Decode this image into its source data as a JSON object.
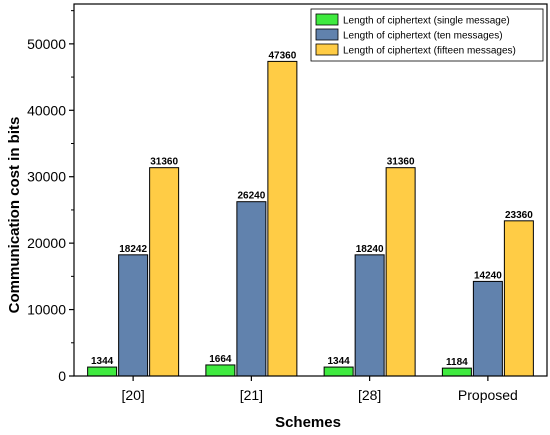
{
  "chart_data": {
    "type": "bar",
    "title": "",
    "xlabel": "Schemes",
    "ylabel": "Communication cost in bits",
    "categories": [
      "[20]",
      "[21]",
      "[28]",
      "Proposed"
    ],
    "series": [
      {
        "name": "Length of ciphertext (single message)",
        "color": "#3fea3f",
        "values": [
          1344,
          1664,
          1344,
          1184
        ]
      },
      {
        "name": "Length of ciphertext (ten messages)",
        "color": "#6182ad",
        "values": [
          18242,
          26240,
          18240,
          14240
        ]
      },
      {
        "name": "Length of ciphertext (fifteen messages)",
        "color": "#ffcc45",
        "values": [
          31360,
          47360,
          31360,
          23360
        ]
      }
    ],
    "ylim": [
      0,
      56000
    ],
    "yticks": [
      0,
      10000,
      20000,
      30000,
      40000,
      50000
    ],
    "grid": false,
    "legend_position": "top-right"
  }
}
